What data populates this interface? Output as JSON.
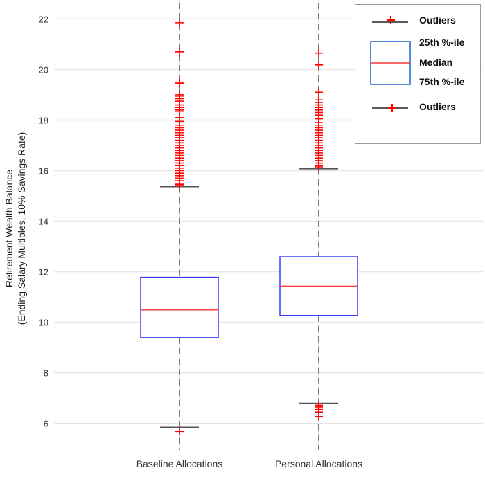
{
  "chart_data": {
    "type": "box",
    "title": "",
    "xlabel": "",
    "ylabel_line1": "Retirement Wealth Balance",
    "ylabel_line2": "(Ending Salary Multiples, 10% Savings Rate)",
    "ylim": [
      4.95,
      22.75
    ],
    "yticks": [
      6,
      8,
      10,
      12,
      14,
      16,
      18,
      20,
      22
    ],
    "grid": true,
    "categories": [
      "Baseline Allocations",
      "Personal Allocations"
    ],
    "series": [
      {
        "name": "Baseline Allocations",
        "whisker_low": 5.84,
        "q1": 9.39,
        "median": 10.49,
        "q3": 11.78,
        "whisker_high": 15.37,
        "outliers": [
          21.85,
          20.7,
          19.5,
          19.45,
          19.0,
          18.95,
          18.85,
          18.75,
          18.6,
          18.5,
          18.4,
          18.35,
          18.1,
          17.95,
          17.8,
          17.7,
          17.6,
          17.5,
          17.4,
          17.3,
          17.2,
          17.1,
          17.0,
          16.9,
          16.8,
          16.7,
          16.6,
          16.5,
          16.4,
          16.3,
          16.2,
          16.1,
          16.0,
          15.9,
          15.8,
          15.7,
          15.6,
          15.5,
          15.45,
          15.4,
          5.68
        ]
      },
      {
        "name": "Personal Allocations",
        "whisker_low": 6.79,
        "q1": 10.27,
        "median": 11.43,
        "q3": 12.59,
        "whisker_high": 16.08,
        "outliers": [
          20.65,
          20.18,
          19.1,
          18.8,
          18.7,
          18.6,
          18.5,
          18.4,
          18.3,
          18.2,
          18.05,
          17.9,
          17.8,
          17.7,
          17.6,
          17.5,
          17.4,
          17.3,
          17.2,
          17.1,
          17.0,
          16.9,
          16.8,
          16.7,
          16.6,
          16.5,
          16.4,
          16.3,
          16.2,
          16.15,
          6.72,
          6.65,
          6.55,
          6.45,
          6.27
        ]
      }
    ],
    "legend": {
      "placement": "top-right",
      "items": [
        "Outliers",
        "25th %-ile",
        "Median",
        "75th %-ile",
        "Outliers"
      ]
    },
    "colors": {
      "box": "#3a3aff",
      "median": "#ff4040",
      "outlier": "#ff0000",
      "whisker": "#555555",
      "grid": "#e6e6e6"
    }
  }
}
